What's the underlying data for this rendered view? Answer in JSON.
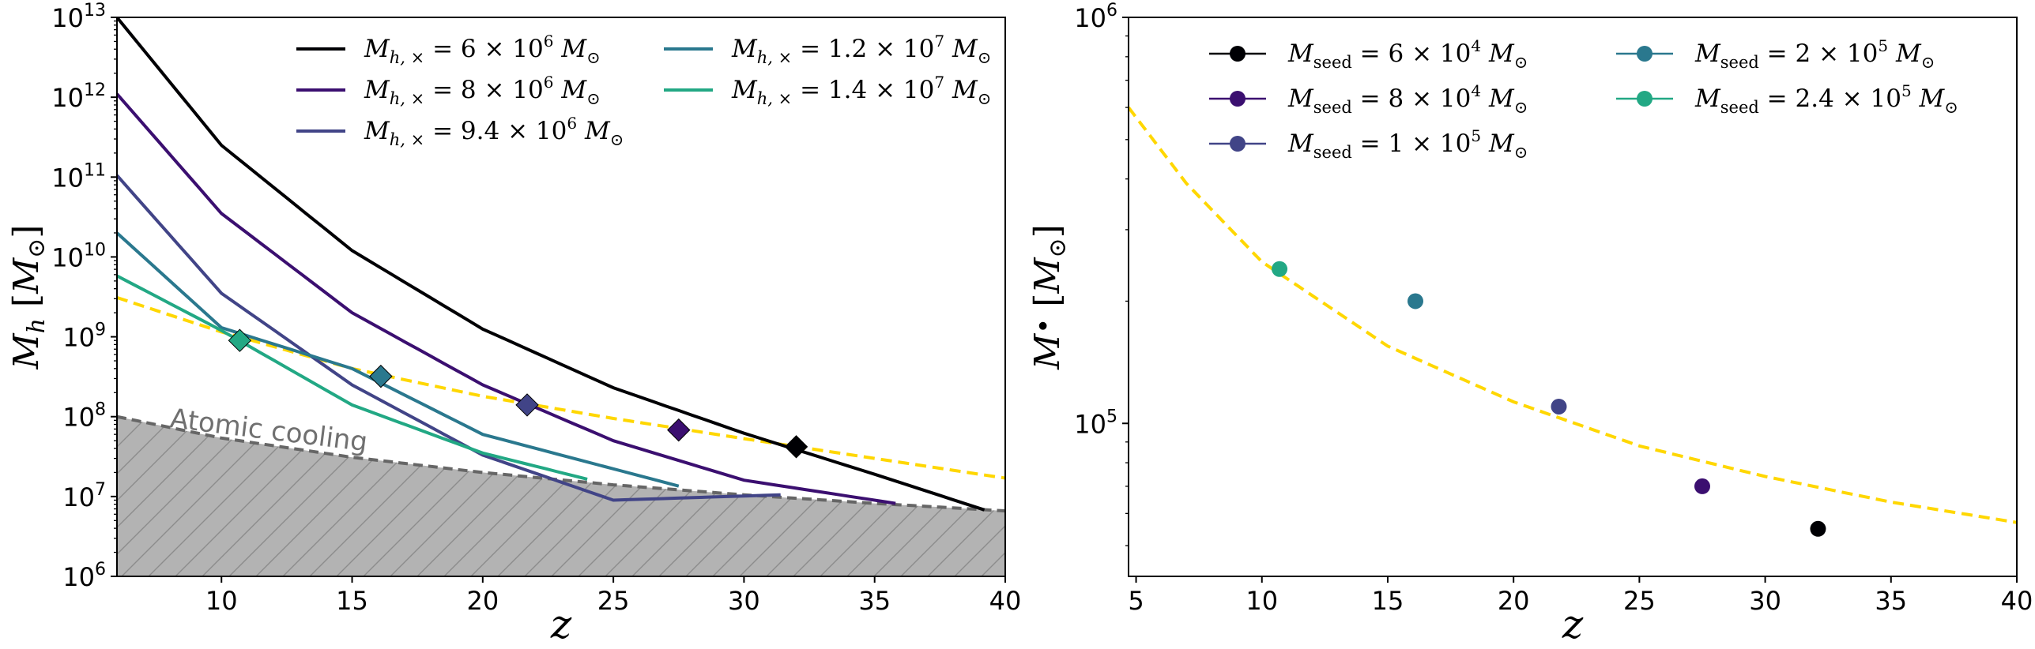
{
  "chart_data": [
    {
      "type": "line",
      "xlabel": "z",
      "ylabel": "M_h [M_⊙]",
      "yscale": "log",
      "xlim": [
        6,
        40
      ],
      "ylim": [
        1000000.0,
        10000000000000.0
      ],
      "xticks": [
        10,
        15,
        20,
        25,
        30,
        35,
        40
      ],
      "yticks": [
        {
          "base": "10",
          "exp": "6"
        },
        {
          "base": "10",
          "exp": "7"
        },
        {
          "base": "10",
          "exp": "8"
        },
        {
          "base": "10",
          "exp": "9"
        },
        {
          "base": "10",
          "exp": "10"
        },
        {
          "base": "10",
          "exp": "11"
        },
        {
          "base": "10",
          "exp": "12"
        },
        {
          "base": "10",
          "exp": "13"
        }
      ],
      "legend_position": "top",
      "series": [
        {
          "name": "M_{h,×} = 6 × 10^6 M_⊙",
          "label": {
            "pre": "= 6 × 10",
            "sup": "6"
          },
          "color": "#000004",
          "x": [
            6,
            10,
            15,
            20,
            25,
            30,
            35,
            39.2
          ],
          "y": [
            10000000000000.0,
            250000000000.0,
            12000000000.0,
            1250000000.0,
            230000000.0,
            62000000.0,
            19000000.0,
            6800000.0
          ],
          "marker_x": 32.0,
          "marker_y": 42000000.0
        },
        {
          "name": "M_{h,×} = 8 × 10^6 M_⊙",
          "label": {
            "pre": "= 8 × 10",
            "sup": "6"
          },
          "color": "#3b0f70",
          "x": [
            6,
            10,
            15,
            20,
            25,
            30,
            35.8
          ],
          "y": [
            1100000000000.0,
            35000000000.0,
            2000000000.0,
            250000000.0,
            50000000.0,
            16000000.0,
            8200000.0
          ],
          "marker_x": 27.5,
          "marker_y": 68000000.0
        },
        {
          "name": "M_{h,×} = 9.4 × 10^6 M_⊙",
          "label": {
            "pre": "= 9.4 × 10",
            "sup": "6"
          },
          "color": "#414487",
          "x": [
            6,
            10,
            15,
            20,
            25,
            31.4
          ],
          "y": [
            105000000000.0,
            3500000000.0,
            250000000.0,
            33000000.0,
            9000000.0,
            10500000.0
          ],
          "marker_x": 21.7,
          "marker_y": 140000000.0
        },
        {
          "name": "M_{h,×} = 1.2 × 10^7 M_⊙",
          "label": {
            "pre": "= 1.2 × 10",
            "sup": "7"
          },
          "color": "#2a788e",
          "x": [
            6,
            10,
            15,
            20,
            27.5
          ],
          "y": [
            20000000000.0,
            1300000000.0,
            400000000.0,
            60000000.0,
            13500000.0
          ],
          "marker_x": 16.1,
          "marker_y": 320000000.0
        },
        {
          "name": "M_{h,×} = 1.4 × 10^7 M_⊙",
          "label": {
            "pre": "= 1.4 × 10",
            "sup": "7"
          },
          "color": "#22a884",
          "x": [
            6,
            10,
            15,
            20,
            24
          ],
          "y": [
            5800000000.0,
            1200000000.0,
            140000000.0,
            35000000.0,
            16500000.0
          ],
          "marker_x": 10.7,
          "marker_y": 900000000.0
        }
      ],
      "reference_line": {
        "style": "dashed",
        "color": "#FFD700",
        "x": [
          6,
          10,
          15,
          20,
          25,
          30,
          35,
          40
        ],
        "y": [
          3100000000.0,
          1150000000.0,
          400000000.0,
          180000000.0,
          95000000.0,
          53000000.0,
          30000000.0,
          17000000.0
        ]
      },
      "atomic_cooling": {
        "label": "Atomic cooling",
        "color": "#707070",
        "fill": "#b3b3b3",
        "x": [
          6,
          10,
          15,
          20,
          25,
          30,
          35,
          40
        ],
        "y": [
          100000000.0,
          54000000.0,
          31000000.0,
          20000000.0,
          14000000.0,
          10500000.0,
          8200000.0,
          6600000.0
        ]
      }
    },
    {
      "type": "scatter",
      "xlabel": "z",
      "ylabel": "M• [M_⊙]",
      "yscale": "log",
      "xlim": [
        4.7,
        40
      ],
      "ylim": [
        42000.0,
        1000000.0
      ],
      "xticks": [
        5,
        10,
        15,
        20,
        25,
        30,
        35,
        40
      ],
      "yticks": [
        {
          "base": "10",
          "exp": "5",
          "value": 100000.0
        },
        {
          "base": "10",
          "exp": "6",
          "value": 1000000.0
        }
      ],
      "legend_position": "top-left",
      "series": [
        {
          "name": "M_seed = 6 × 10^4 M_⊙",
          "label": {
            "pre": "= 6 × 10",
            "sup": "4"
          },
          "color": "#000004",
          "x": [
            32.1
          ],
          "y": [
            55000.0
          ]
        },
        {
          "name": "M_seed = 8 × 10^4 M_⊙",
          "label": {
            "pre": "= 8 × 10",
            "sup": "4"
          },
          "color": "#3b0f70",
          "x": [
            27.5
          ],
          "y": [
            70000.0
          ]
        },
        {
          "name": "M_seed = 1 × 10^5 M_⊙",
          "label": {
            "pre": "= 1 × 10",
            "sup": "5"
          },
          "color": "#414487",
          "x": [
            21.8
          ],
          "y": [
            110000.0
          ]
        },
        {
          "name": "M_seed = 2 × 10^5 M_⊙",
          "label": {
            "pre": "= 2 × 10",
            "sup": "5"
          },
          "color": "#2a788e",
          "x": [
            16.1
          ],
          "y": [
            200000.0
          ]
        },
        {
          "name": "M_seed = 2.4 × 10^5 M_⊙",
          "label": {
            "pre": "= 2.4 × 10",
            "sup": "5"
          },
          "color": "#22a884",
          "x": [
            10.7
          ],
          "y": [
            240000.0
          ]
        }
      ],
      "reference_line": {
        "style": "dashed",
        "color": "#FFD700",
        "x": [
          4.7,
          7,
          10,
          15,
          20,
          25,
          30,
          35,
          40
        ],
        "y": [
          600000.0,
          390000.0,
          250000.0,
          155000.0,
          113000.0,
          88000.0,
          74000.0,
          64000.0,
          57000.0
        ]
      }
    }
  ]
}
